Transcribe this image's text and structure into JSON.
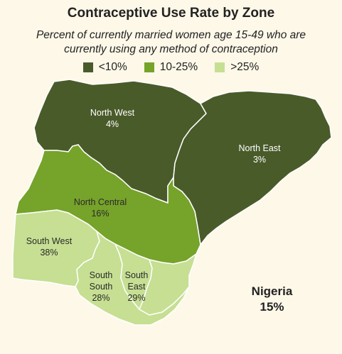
{
  "title": "Contraceptive Use Rate by Zone",
  "subtitle_line1": "Percent of currently married women age 15-49 who are",
  "subtitle_line2": "currently using any method of contraception",
  "legend": [
    {
      "label": "<10%",
      "color": "#4a5b2a"
    },
    {
      "label": "10-25%",
      "color": "#76a32a"
    },
    {
      "label": ">25%",
      "color": "#c6df93"
    }
  ],
  "zones": {
    "north_west": {
      "name": "North West",
      "value": "4%"
    },
    "north_east": {
      "name": "North East",
      "value": "3%"
    },
    "north_central": {
      "name": "North Central",
      "value": "16%"
    },
    "south_west": {
      "name": "South West",
      "value": "38%"
    },
    "south_south": {
      "name1": "South",
      "name2": "South",
      "value": "28%"
    },
    "south_east": {
      "name1": "South",
      "name2": "East",
      "value": "29%"
    }
  },
  "national": {
    "name": "Nigeria",
    "value": "15%"
  },
  "colors": {
    "low": "#4a5b2a",
    "mid": "#76a32a",
    "high": "#c6df93",
    "border": "#ffffff"
  }
}
